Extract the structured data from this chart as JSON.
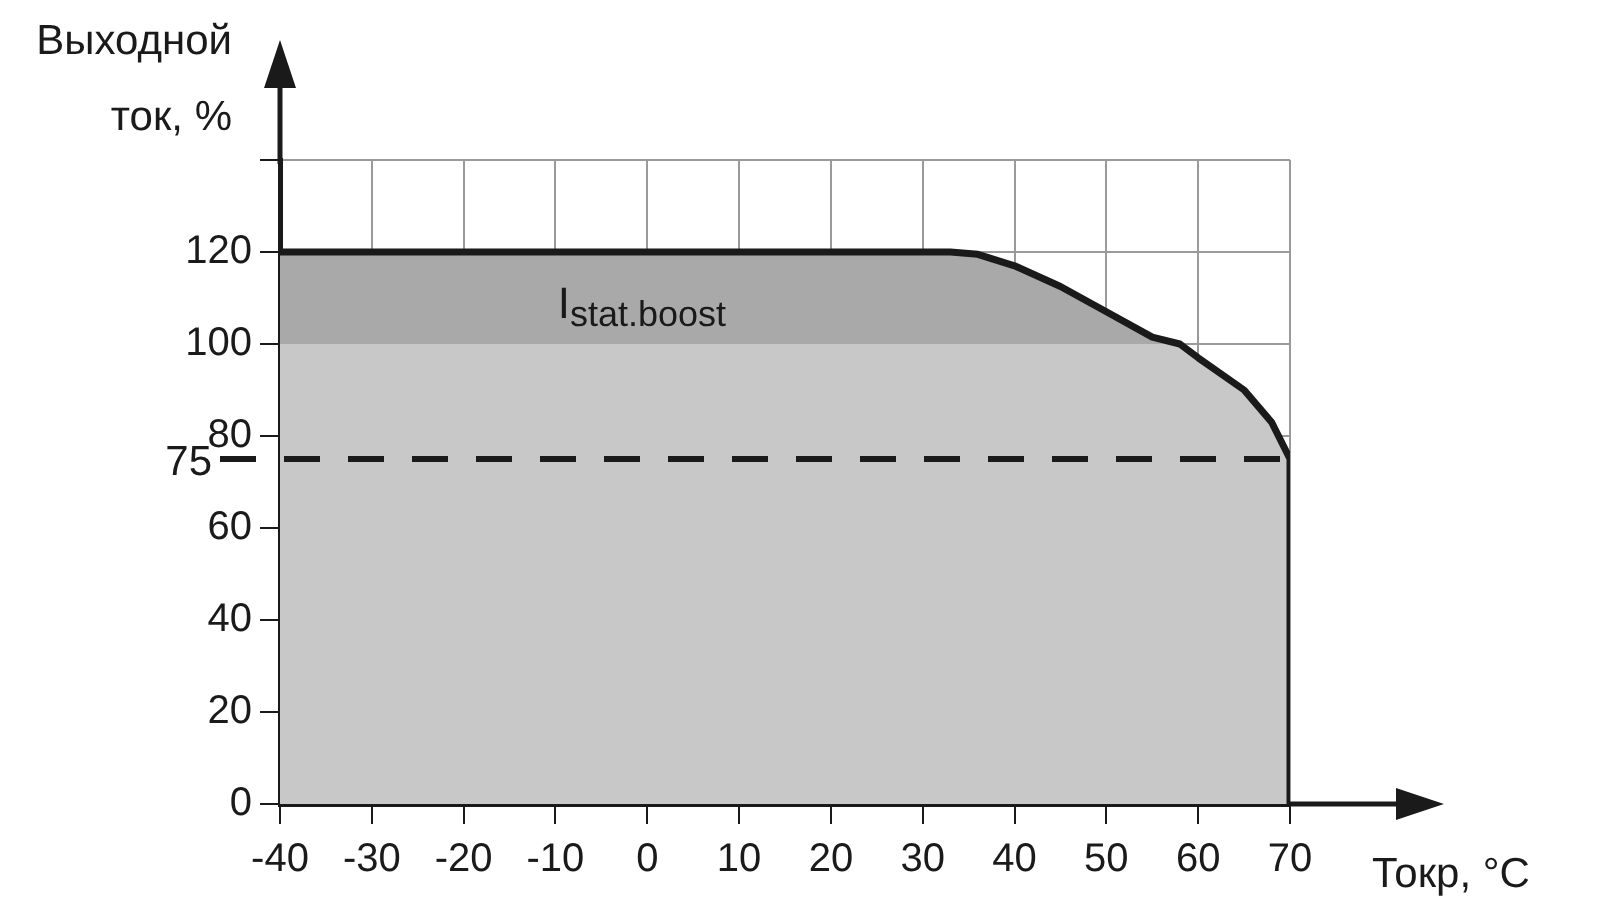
{
  "chart_data": {
    "type": "area",
    "ylabel": "Выходной ток, %",
    "xlabel": "Токр, °C",
    "xlim": [
      -40,
      70
    ],
    "xticks": [
      -40,
      -30,
      -20,
      -10,
      0,
      10,
      20,
      30,
      40,
      50,
      60,
      70
    ],
    "ylim": [
      0,
      140
    ],
    "yticks": [
      0,
      20,
      40,
      60,
      80,
      100,
      120,
      {
        "value": 140,
        "label": null
      }
    ],
    "grid": true,
    "legend": false,
    "series": [
      {
        "type": "line",
        "color": "#1a1a1a",
        "x": [
          -40,
          33,
          36,
          40,
          45,
          50,
          55,
          58,
          60,
          65,
          68,
          70,
          70
        ],
        "values": [
          120,
          120,
          119.5,
          117,
          112.5,
          107,
          101.5,
          100,
          97,
          90,
          83,
          75,
          0
        ]
      },
      {
        "color": "#a9a9a9",
        "x": [
          -40,
          33,
          36,
          40,
          45,
          50,
          55,
          58
        ],
        "values": [
          120,
          120,
          119.5,
          117,
          112.5,
          107,
          101.5,
          100
        ]
      },
      {
        "color": "#c8c8c8",
        "x": [
          -40,
          58,
          60,
          65,
          68,
          70,
          70
        ],
        "values": [
          100,
          100,
          97,
          90,
          83,
          75,
          0
        ]
      }
    ],
    "ref_lines": [
      {
        "axis": "y",
        "value": 75,
        "label": "75",
        "line_style": "dashed",
        "color": "#1a1a1a"
      }
    ],
    "annotations": [
      "I$_{stat.boost}$"
    ]
  }
}
